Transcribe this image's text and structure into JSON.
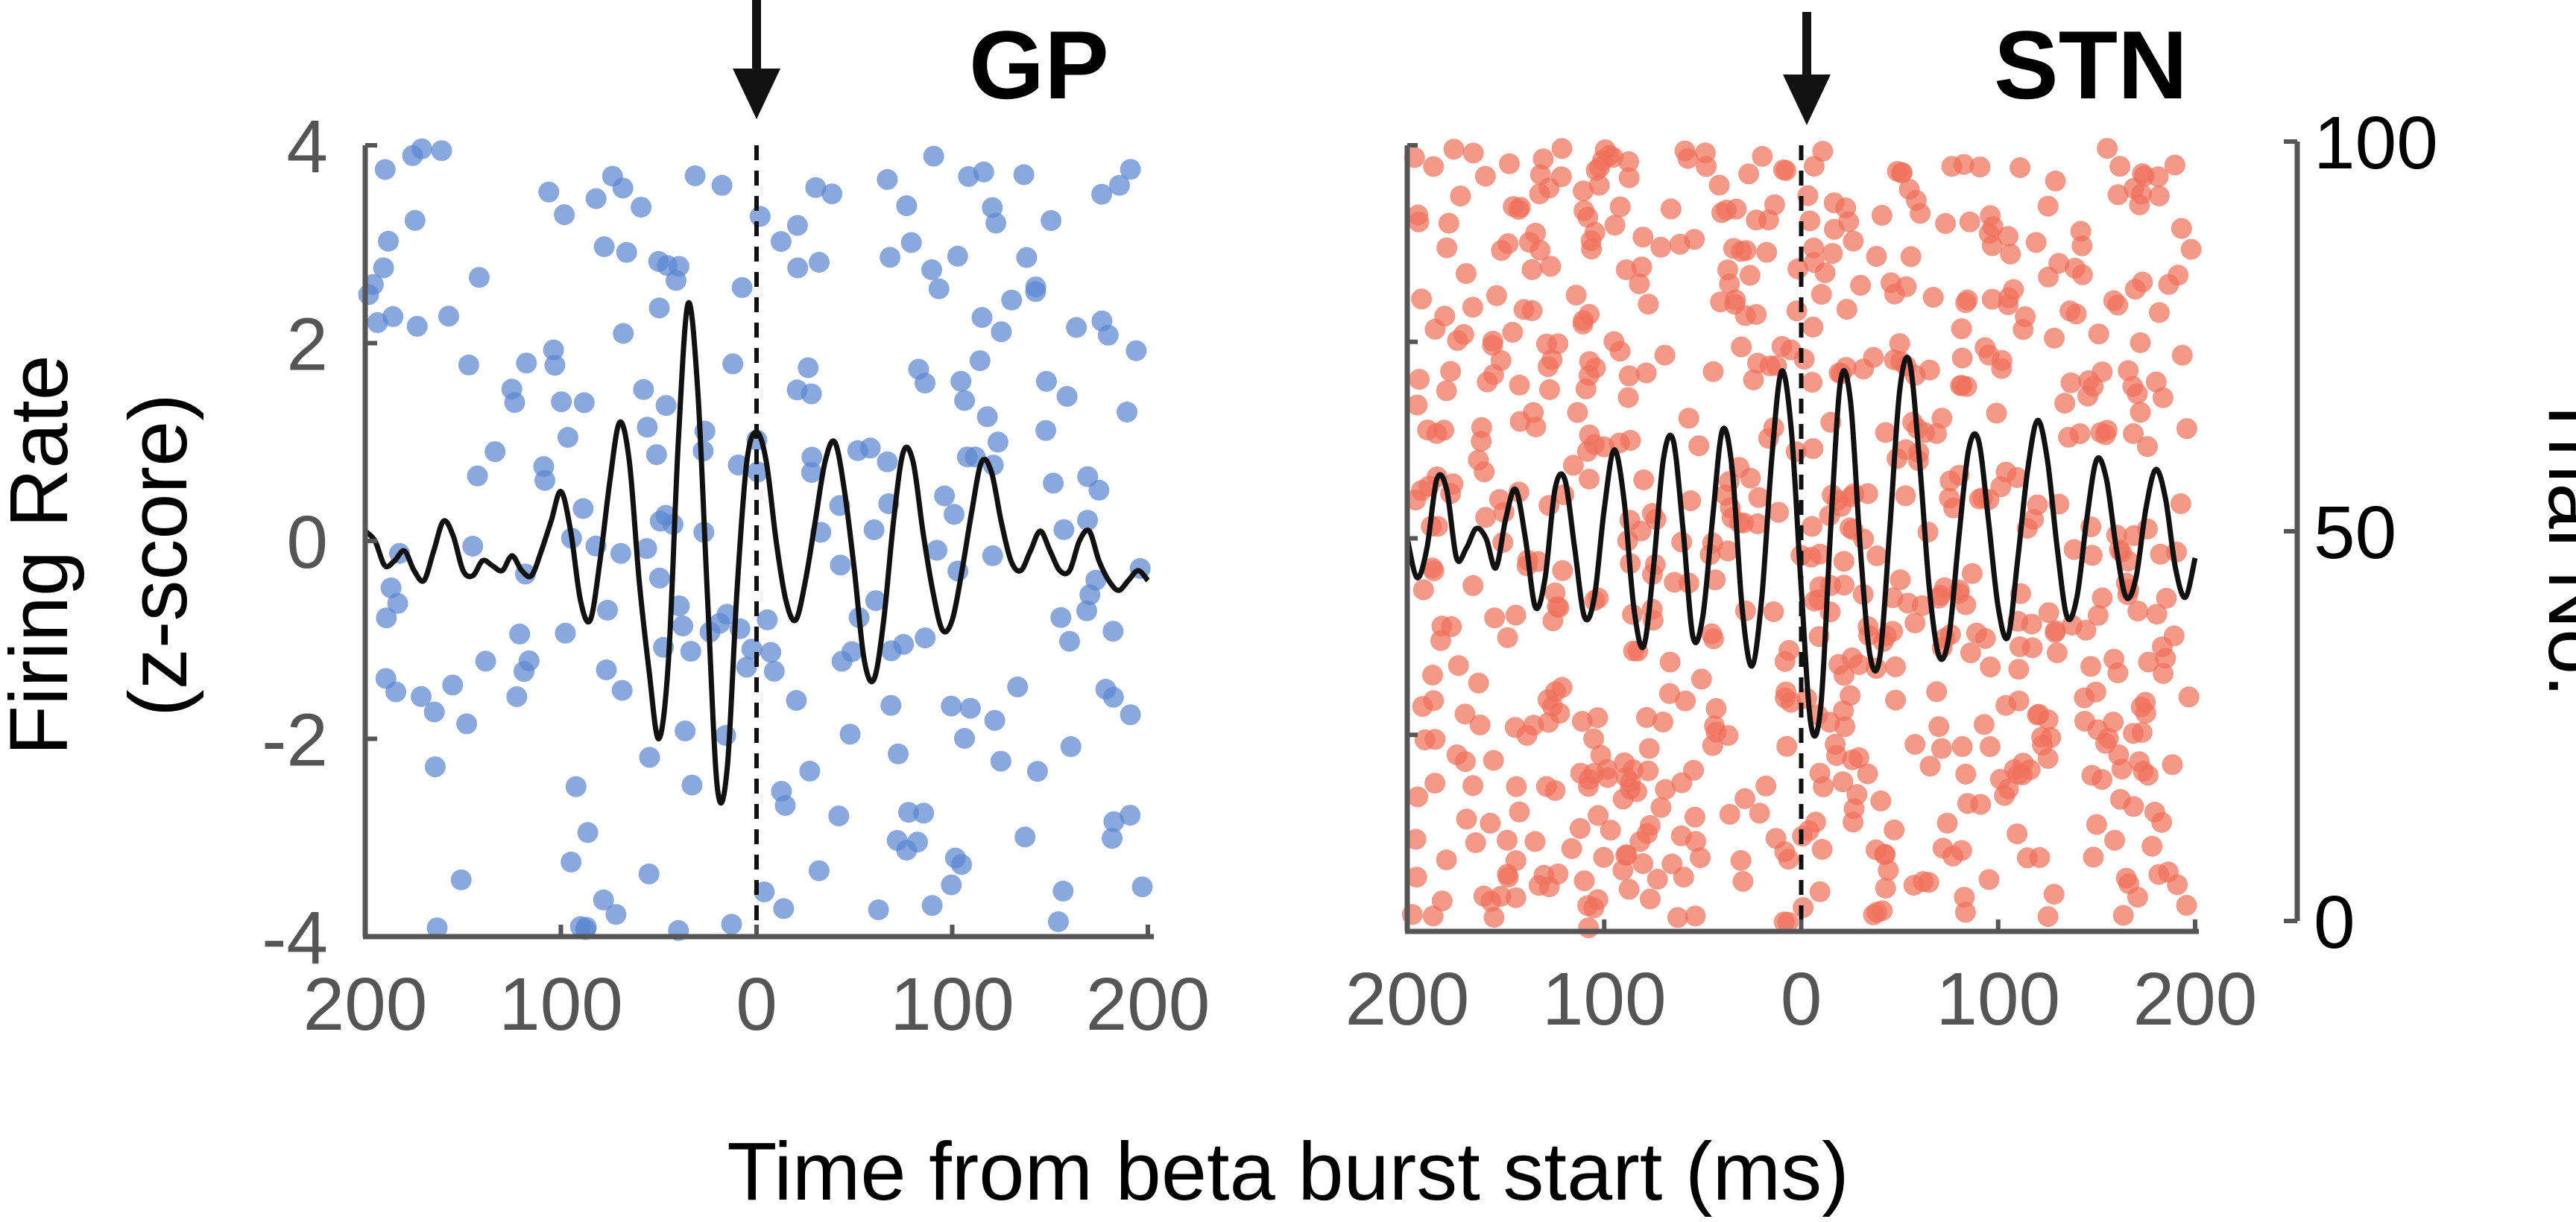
{
  "chart_data": [
    {
      "type": "scatter",
      "title": "GP",
      "ylabel_line1": "Firing Rate",
      "ylabel_line2": "(z-score)",
      "xlim": [
        -200,
        200
      ],
      "ylim": [
        -4,
        4
      ],
      "x_ticks": [
        -200,
        -100,
        0,
        100,
        200
      ],
      "x_tick_labels": [
        "200",
        "100",
        "0",
        "100",
        "200"
      ],
      "y_ticks": [
        -4,
        -2,
        0,
        2,
        4
      ],
      "y_tick_labels": [
        "-4",
        "-2",
        "0",
        "2",
        "4"
      ],
      "event_marker_x": 0,
      "raster_color": "#5b87d0",
      "line_color": "#111111",
      "raster_count": 240,
      "series": [
        {
          "type": "line",
          "x": [
            -200,
            -195,
            -190,
            -185,
            -180,
            -175,
            -170,
            -165,
            -160,
            -155,
            -150,
            -145,
            -140,
            -135,
            -130,
            -125,
            -120,
            -115,
            -110,
            -105,
            -100,
            -95,
            -90,
            -85,
            -80,
            -75,
            -70,
            -65,
            -60,
            -55,
            -50,
            -45,
            -40,
            -35,
            -30,
            -25,
            -20,
            -15,
            -10,
            -5,
            0,
            5,
            10,
            15,
            20,
            25,
            30,
            35,
            40,
            45,
            50,
            55,
            60,
            65,
            70,
            75,
            80,
            85,
            90,
            95,
            100,
            105,
            110,
            115,
            120,
            125,
            130,
            135,
            140,
            145,
            150,
            155,
            160,
            165,
            170,
            175,
            180,
            185,
            190,
            195,
            200
          ],
          "y": [
            0.1,
            0.0,
            -0.25,
            -0.2,
            -0.1,
            -0.3,
            -0.4,
            -0.1,
            0.2,
            0.05,
            -0.3,
            -0.35,
            -0.2,
            -0.25,
            -0.3,
            -0.15,
            -0.3,
            -0.35,
            -0.1,
            0.2,
            0.5,
            0.1,
            -0.6,
            -0.8,
            -0.2,
            0.6,
            1.2,
            0.8,
            -0.4,
            -1.3,
            -2.0,
            -1.2,
            1.0,
            2.4,
            1.5,
            -0.6,
            -2.5,
            -2.3,
            -0.5,
            0.8,
            1.1,
            0.8,
            0.0,
            -0.6,
            -0.8,
            -0.4,
            0.2,
            0.8,
            1.0,
            0.5,
            -0.3,
            -1.2,
            -1.4,
            -0.8,
            0.2,
            0.9,
            0.8,
            0.1,
            -0.5,
            -0.9,
            -0.8,
            -0.3,
            0.3,
            0.8,
            0.7,
            0.2,
            -0.2,
            -0.3,
            -0.1,
            0.1,
            -0.1,
            -0.3,
            -0.3,
            0.0,
            0.1,
            -0.2,
            -0.4,
            -0.5,
            -0.4,
            -0.3,
            -0.4
          ]
        }
      ]
    },
    {
      "type": "scatter",
      "title": "STN",
      "ylabel_right": "Trial No.",
      "xlim": [
        -200,
        200
      ],
      "ylim": [
        0,
        100
      ],
      "x_ticks": [
        -200,
        -100,
        0,
        100,
        200
      ],
      "x_tick_labels": [
        "200",
        "100",
        "0",
        "100",
        "200"
      ],
      "y_ticks": [
        0,
        50,
        100
      ],
      "y_tick_labels": [
        "0",
        "50",
        "100"
      ],
      "event_marker_x": 0,
      "raster_color": "#f0705a",
      "line_color": "#111111",
      "raster_count": 720,
      "series": [
        {
          "type": "line",
          "x": [
            -200,
            -195,
            -190,
            -185,
            -180,
            -175,
            -170,
            -165,
            -160,
            -155,
            -150,
            -145,
            -140,
            -135,
            -130,
            -125,
            -120,
            -115,
            -110,
            -105,
            -100,
            -95,
            -90,
            -85,
            -80,
            -75,
            -70,
            -65,
            -60,
            -55,
            -50,
            -45,
            -40,
            -35,
            -30,
            -25,
            -20,
            -15,
            -10,
            -5,
            0,
            5,
            10,
            15,
            20,
            25,
            30,
            35,
            40,
            45,
            50,
            55,
            60,
            65,
            70,
            75,
            80,
            85,
            90,
            95,
            100,
            105,
            110,
            115,
            120,
            125,
            130,
            135,
            140,
            145,
            150,
            155,
            160,
            165,
            170,
            175,
            180,
            185,
            190,
            195,
            200
          ],
          "y": [
            0.0,
            -0.4,
            -0.1,
            0.6,
            0.5,
            -0.2,
            -0.1,
            0.1,
            0.0,
            -0.3,
            0.2,
            0.5,
            0.0,
            -0.7,
            -0.4,
            0.5,
            0.6,
            -0.1,
            -0.8,
            -0.6,
            0.3,
            0.9,
            0.4,
            -0.7,
            -1.1,
            -0.3,
            0.8,
            1.0,
            0.1,
            -1.0,
            -0.8,
            0.2,
            1.1,
            0.7,
            -0.7,
            -1.3,
            -0.6,
            0.8,
            1.7,
            1.1,
            -0.5,
            -1.9,
            -1.7,
            0.1,
            1.6,
            1.4,
            -0.1,
            -1.2,
            -1.2,
            0.1,
            1.5,
            1.8,
            0.8,
            -0.5,
            -1.2,
            -1.0,
            0.0,
            0.9,
            1.0,
            0.2,
            -0.7,
            -1.0,
            -0.2,
            0.7,
            1.2,
            0.8,
            -0.1,
            -0.8,
            -0.6,
            0.2,
            0.8,
            0.6,
            -0.1,
            -0.6,
            -0.4,
            0.3,
            0.7,
            0.4,
            -0.3,
            -0.6,
            -0.2
          ]
        }
      ]
    }
  ],
  "shared_xlabel": "Time from beta burst start (ms)"
}
